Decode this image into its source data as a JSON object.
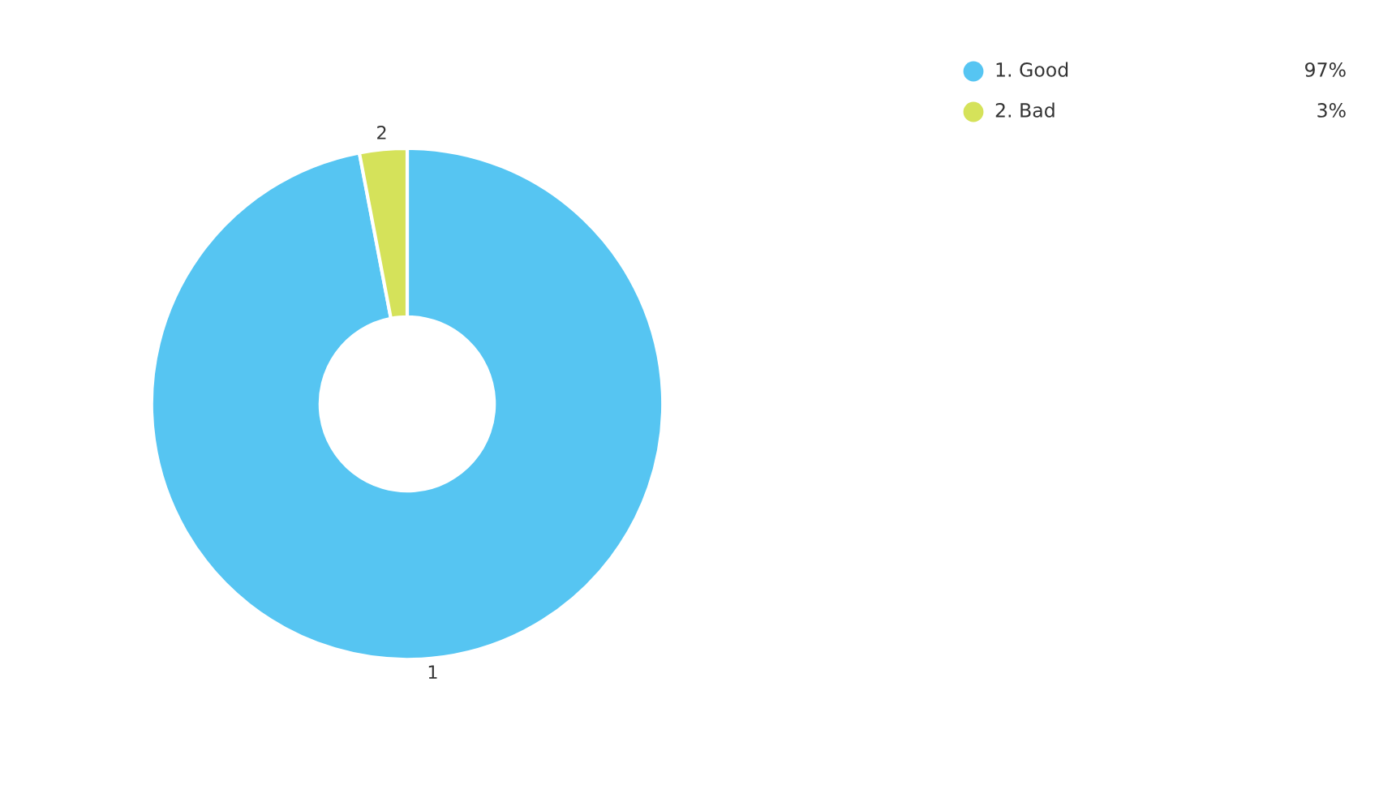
{
  "chart_data": {
    "type": "donut",
    "categories": [
      "1. Good",
      "2. Bad"
    ],
    "values": [
      97,
      3
    ],
    "colors": [
      "#56c5f2",
      "#d5e25a"
    ],
    "value_labels": [
      "97%",
      "3%"
    ],
    "annotations": [
      "1",
      "2"
    ],
    "legend": "top right"
  }
}
